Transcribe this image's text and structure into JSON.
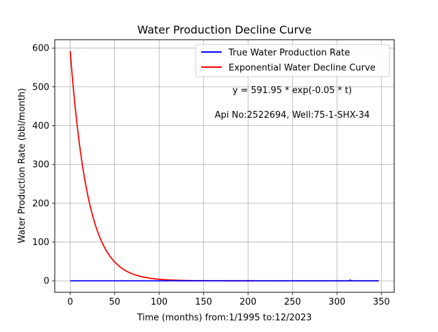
{
  "chart_data": {
    "type": "line",
    "title": "Water Production Decline Curve",
    "xlabel": "Time (months) from:1/1995 to:12/2023",
    "ylabel": "Water Production Rate (bbl/month)",
    "xlim": [
      -17.4,
      364.4
    ],
    "ylim": [
      -29.6,
      621.5
    ],
    "xticks": [
      0,
      50,
      100,
      150,
      200,
      250,
      300,
      350
    ],
    "yticks": [
      0,
      100,
      200,
      300,
      400,
      500,
      600
    ],
    "grid": true,
    "legend_position": "top-right",
    "series": [
      {
        "name": "True Water Production Rate",
        "color": "#0000ff",
        "x": [
          0,
          50,
          100,
          150,
          200,
          250,
          300,
          313,
          314,
          315,
          316,
          317,
          330,
          347
        ],
        "y": [
          0,
          0,
          0,
          0,
          0,
          0,
          0,
          0,
          0,
          2,
          0,
          0,
          0,
          0
        ]
      },
      {
        "name": "Exponential Water Decline Curve",
        "color": "#ff0000",
        "model": {
          "a": 591.95,
          "b": 0.05
        },
        "x_range": [
          0,
          347
        ]
      }
    ],
    "annotations": [
      "y = 591.95 * exp(-0.05 * t)",
      "Api No:2522694, Well:75-1-SHX-34"
    ]
  }
}
